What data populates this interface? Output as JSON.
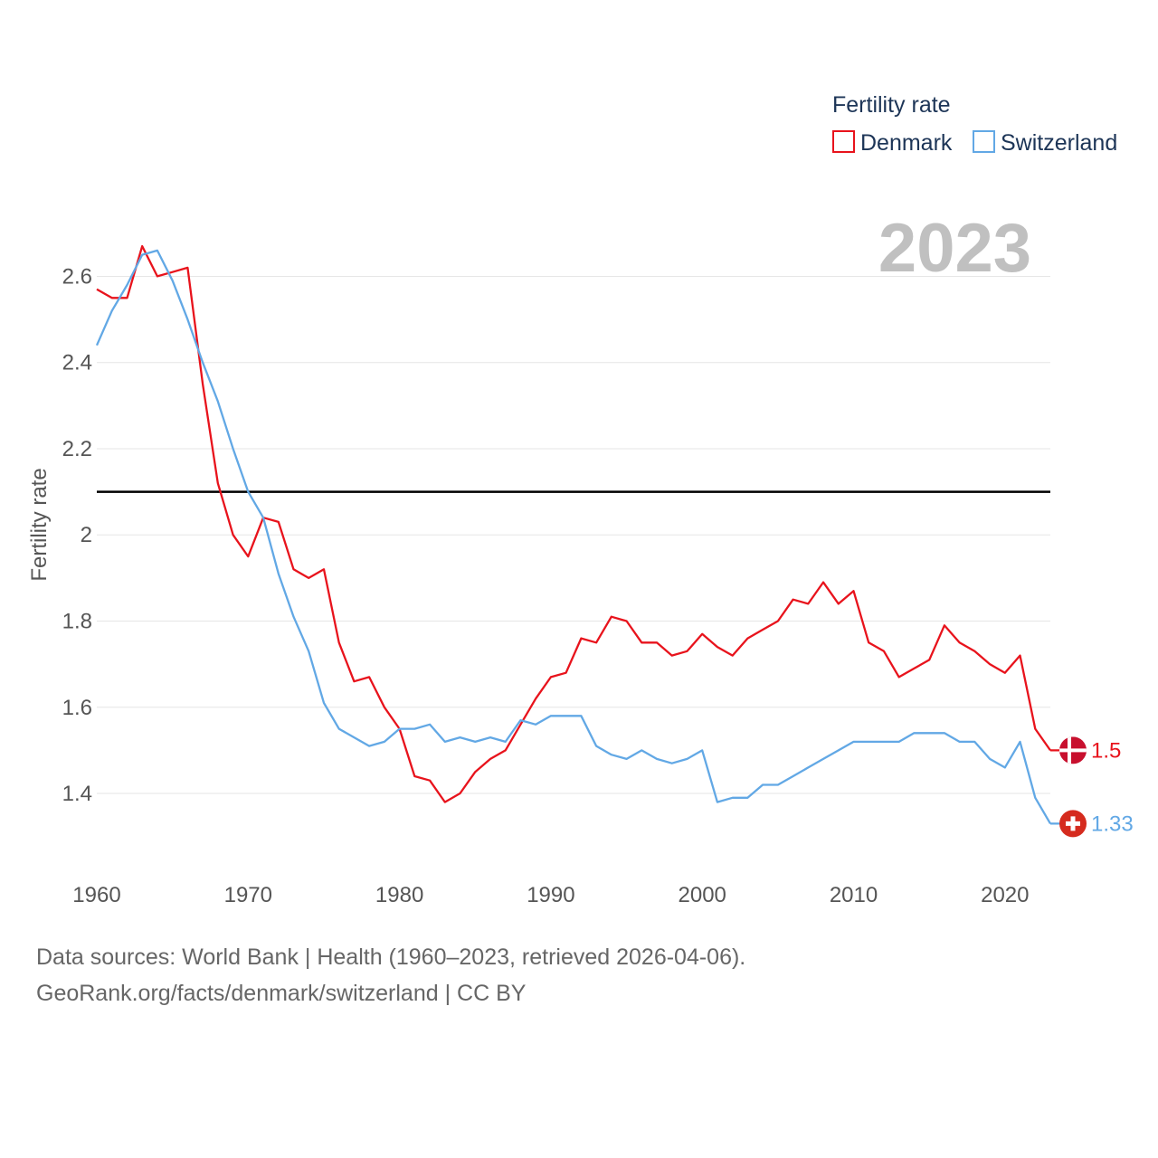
{
  "chart_data": {
    "type": "line",
    "ylabel": "Fertility rate",
    "xlabel": "",
    "ylim": [
      1.23,
      2.75
    ],
    "xlim": [
      1960,
      2023
    ],
    "yticks": [
      1.4,
      1.6,
      1.8,
      2,
      2.2,
      2.4,
      2.6
    ],
    "ytick_labels": [
      "1.4",
      "1.6",
      "1.8",
      "2",
      "2.2",
      "2.4",
      "2.6"
    ],
    "xticks": [
      1960,
      1970,
      1980,
      1990,
      2000,
      2010,
      2020
    ],
    "xtick_labels": [
      "1960",
      "1970",
      "1980",
      "1990",
      "2000",
      "2010",
      "2020"
    ],
    "reference_line": 2.1,
    "grid": true,
    "legend": {
      "title": "Fertility rate",
      "position": "top-right"
    },
    "year_label": "2023",
    "x": [
      1960,
      1961,
      1962,
      1963,
      1964,
      1965,
      1966,
      1967,
      1968,
      1969,
      1970,
      1971,
      1972,
      1973,
      1974,
      1975,
      1976,
      1977,
      1978,
      1979,
      1980,
      1981,
      1982,
      1983,
      1984,
      1985,
      1986,
      1987,
      1988,
      1989,
      1990,
      1991,
      1992,
      1993,
      1994,
      1995,
      1996,
      1997,
      1998,
      1999,
      2000,
      2001,
      2002,
      2003,
      2004,
      2005,
      2006,
      2007,
      2008,
      2009,
      2010,
      2011,
      2012,
      2013,
      2014,
      2015,
      2016,
      2017,
      2018,
      2019,
      2020,
      2021,
      2022,
      2023
    ],
    "series": [
      {
        "name": "Denmark",
        "color": "#e8131c",
        "end_label": "1.5",
        "values": [
          2.57,
          2.55,
          2.55,
          2.67,
          2.6,
          2.61,
          2.62,
          2.35,
          2.12,
          2.0,
          1.95,
          2.04,
          2.03,
          1.92,
          1.9,
          1.92,
          1.75,
          1.66,
          1.67,
          1.6,
          1.55,
          1.44,
          1.43,
          1.38,
          1.4,
          1.45,
          1.48,
          1.5,
          1.56,
          1.62,
          1.67,
          1.68,
          1.76,
          1.75,
          1.81,
          1.8,
          1.75,
          1.75,
          1.72,
          1.73,
          1.77,
          1.74,
          1.72,
          1.76,
          1.78,
          1.8,
          1.85,
          1.84,
          1.89,
          1.84,
          1.87,
          1.75,
          1.73,
          1.67,
          1.69,
          1.71,
          1.79,
          1.75,
          1.73,
          1.7,
          1.68,
          1.72,
          1.55,
          1.5
        ]
      },
      {
        "name": "Switzerland",
        "color": "#62a8e5",
        "end_label": "1.33",
        "values": [
          2.44,
          2.52,
          2.58,
          2.65,
          2.66,
          2.59,
          2.5,
          2.4,
          2.31,
          2.2,
          2.1,
          2.04,
          1.91,
          1.81,
          1.73,
          1.61,
          1.55,
          1.53,
          1.51,
          1.52,
          1.55,
          1.55,
          1.56,
          1.52,
          1.53,
          1.52,
          1.53,
          1.52,
          1.57,
          1.56,
          1.58,
          1.58,
          1.58,
          1.51,
          1.49,
          1.48,
          1.5,
          1.48,
          1.47,
          1.48,
          1.5,
          1.38,
          1.39,
          1.39,
          1.42,
          1.42,
          1.44,
          1.46,
          1.48,
          1.5,
          1.52,
          1.52,
          1.52,
          1.52,
          1.54,
          1.54,
          1.54,
          1.52,
          1.52,
          1.48,
          1.46,
          1.52,
          1.39,
          1.33
        ]
      }
    ]
  },
  "flags": {
    "denmark": {
      "name": "denmark-flag-icon",
      "color": "#c8102e"
    },
    "switzerland": {
      "name": "switzerland-flag-icon",
      "color": "#d52b1e"
    }
  },
  "footer": {
    "line1": "Data sources: World Bank | Health (1960–2023, retrieved 2026-04-06).",
    "line2": "GeoRank.org/facts/denmark/switzerland | CC BY"
  }
}
